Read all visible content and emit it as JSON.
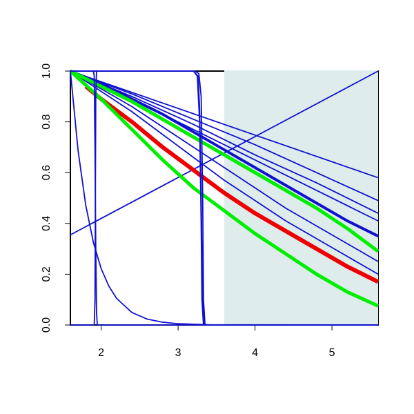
{
  "chart_data": {
    "type": "line",
    "xlim": [
      1.6,
      5.6
    ],
    "ylim": [
      0,
      1
    ],
    "xticks": [
      2,
      3,
      4,
      5
    ],
    "yticks": [
      {
        "value": 0,
        "label": "0.0"
      },
      0.2,
      0.4,
      0.6,
      0.8,
      {
        "value": 1,
        "label": "1.0"
      }
    ],
    "highlight": {
      "xmin": 3.6,
      "xmax": 5.6,
      "color": "#deeceb"
    },
    "series": [
      {
        "color": "#1010d0",
        "width": 1.8,
        "x": [
          1.6,
          5.6
        ],
        "values": [
          0.355,
          1.0
        ]
      },
      {
        "color": "#1010d0",
        "width": 1.8,
        "x": [
          1.6,
          5.6
        ],
        "values": [
          1.0,
          0.58
        ]
      },
      {
        "color": "#1010d0",
        "width": 1.8,
        "x": [
          1.6,
          2.4,
          3.2,
          4.0,
          4.8,
          5.6
        ],
        "values": [
          1.0,
          0.91,
          0.81,
          0.71,
          0.6,
          0.49
        ]
      },
      {
        "color": "#1010d0",
        "width": 1.8,
        "x": [
          1.6,
          2.4,
          3.2,
          4.0,
          4.8,
          5.6
        ],
        "values": [
          1.0,
          0.9,
          0.79,
          0.67,
          0.56,
          0.44
        ]
      },
      {
        "color": "#1010d0",
        "width": 1.8,
        "x": [
          1.6,
          2.4,
          3.2,
          4.0,
          4.8,
          5.6
        ],
        "values": [
          1.0,
          0.89,
          0.77,
          0.65,
          0.53,
          0.41
        ]
      },
      {
        "color": "#1010d0",
        "width": 4,
        "x": [
          1.6,
          2.0,
          2.4,
          2.8,
          3.2,
          3.6,
          4.0,
          4.4,
          4.8,
          5.2,
          5.6
        ],
        "values": [
          1.0,
          0.95,
          0.89,
          0.83,
          0.76,
          0.69,
          0.62,
          0.55,
          0.48,
          0.41,
          0.35
        ]
      },
      {
        "color": "#1010d0",
        "width": 1.8,
        "x": [
          1.6,
          2.0,
          2.4,
          2.8,
          3.2,
          3.6,
          4.0,
          4.4,
          4.8,
          5.2,
          5.6
        ],
        "values": [
          1.0,
          0.93,
          0.86,
          0.78,
          0.7,
          0.62,
          0.54,
          0.46,
          0.39,
          0.32,
          0.25
        ]
      },
      {
        "color": "#1010d0",
        "width": 1.8,
        "x": [
          1.6,
          2.0,
          2.4,
          2.8,
          3.2,
          3.6,
          4.0,
          4.4,
          4.8,
          5.2,
          5.6
        ],
        "values": [
          1.0,
          0.92,
          0.84,
          0.75,
          0.66,
          0.57,
          0.49,
          0.41,
          0.34,
          0.27,
          0.2
        ]
      },
      {
        "color": "#00ee00",
        "width": 5,
        "x": [
          1.6,
          2.0,
          2.4,
          2.8,
          3.2,
          3.6,
          4.0,
          4.4,
          4.8,
          5.2,
          5.6
        ],
        "values": [
          1.0,
          0.94,
          0.88,
          0.81,
          0.74,
          0.67,
          0.6,
          0.53,
          0.46,
          0.38,
          0.29
        ]
      },
      {
        "color": "#ee0000",
        "width": 6,
        "x": [
          1.8,
          2.0,
          2.4,
          2.8,
          3.2,
          3.6,
          4.0,
          4.4,
          4.8,
          5.2,
          5.6
        ],
        "values": [
          0.94,
          0.89,
          0.8,
          0.7,
          0.61,
          0.52,
          0.44,
          0.37,
          0.3,
          0.23,
          0.17
        ]
      },
      {
        "color": "#00ee00",
        "width": 5,
        "x": [
          1.6,
          2.0,
          2.4,
          2.8,
          3.2,
          3.6,
          4.0,
          4.4,
          4.8,
          5.2,
          5.6
        ],
        "values": [
          1.0,
          0.89,
          0.77,
          0.65,
          0.54,
          0.45,
          0.36,
          0.28,
          0.2,
          0.13,
          0.075
        ]
      },
      {
        "color": "#1010d0",
        "width": 1.8,
        "x": [
          1.6,
          1.7,
          1.8,
          1.9,
          2.0,
          2.1,
          2.2,
          2.4,
          2.6,
          2.8,
          3.0,
          3.4,
          5.6
        ],
        "values": [
          1.0,
          0.687,
          0.471,
          0.324,
          0.222,
          0.153,
          0.105,
          0.049,
          0.023,
          0.011,
          0.005,
          0.001,
          0
        ]
      },
      {
        "color": "#1010d0",
        "width": 1.8,
        "x": [
          1.6,
          1.9,
          1.91,
          1.92,
          1.93,
          1.94,
          1.95,
          5.6
        ],
        "values": [
          1.0,
          1.0,
          0.98,
          0.7,
          0.3,
          0.05,
          0,
          0
        ]
      },
      {
        "color": "#1010d0",
        "width": 1.8,
        "x": [
          1.6,
          1.91,
          1.92,
          1.93,
          1.94,
          3.2,
          3.26,
          3.28,
          3.3,
          3.32,
          3.34,
          5.6
        ],
        "values": [
          0,
          0,
          0.1,
          0.9,
          1.0,
          1.0,
          0.98,
          0.85,
          0.5,
          0.1,
          0,
          0
        ]
      },
      {
        "color": "#1010d0",
        "width": 1.8,
        "x": [
          1.6,
          3.2,
          3.25,
          3.28,
          3.3,
          3.31,
          3.33,
          5.6
        ],
        "values": [
          1.0,
          1.0,
          0.98,
          0.8,
          0.4,
          0.1,
          0,
          0
        ]
      },
      {
        "color": "#1010d0",
        "width": 1.8,
        "x": [
          1.6,
          3.22,
          3.27,
          3.3,
          3.32,
          3.33,
          3.35,
          5.6
        ],
        "values": [
          1.0,
          1.0,
          0.99,
          0.9,
          0.5,
          0.1,
          0,
          0
        ]
      }
    ]
  }
}
